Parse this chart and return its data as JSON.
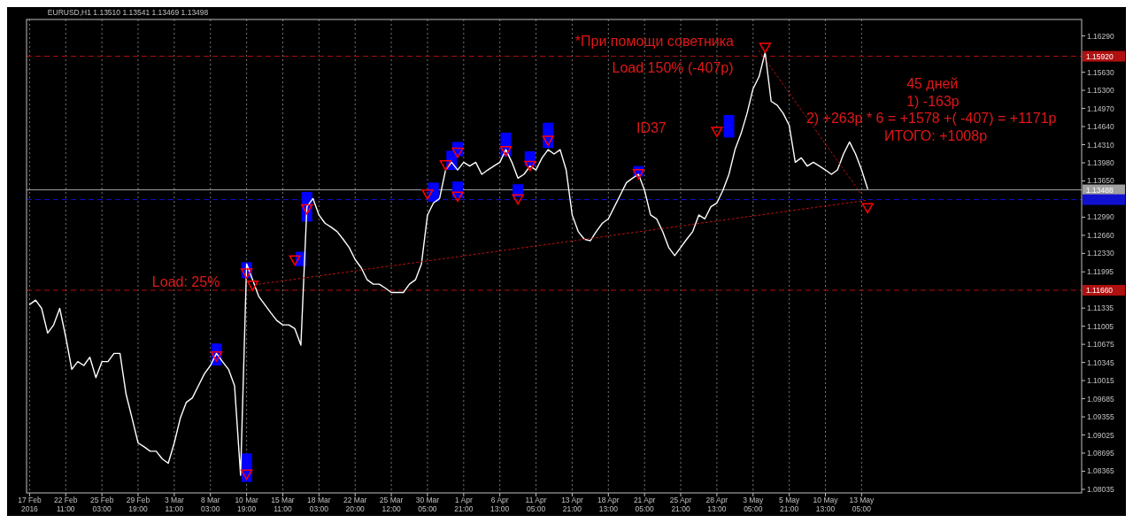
{
  "chart_data": {
    "type": "line",
    "annotations": [
      "EURUSD,H1  1.13510 1.13541 1.13469 1.13498",
      "*При помощи советника",
      "Load 150% (-407р)",
      "45 дней",
      "1) -163р",
      "2) +263р * 6 = +1578 +( -407) = +1171р",
      "ИТОГО: +1008р",
      "ID37",
      "Load: 25%"
    ],
    "categories": [
      "17 Feb 2016",
      null,
      null,
      null,
      null,
      null,
      "22 Feb 11:00",
      null,
      null,
      null,
      null,
      null,
      "25 Feb 03:00",
      null,
      null,
      null,
      null,
      null,
      "29 Feb 19:00",
      null,
      null,
      null,
      null,
      null,
      "3 Mar 11:00",
      null,
      null,
      null,
      null,
      null,
      "8 Mar 03:00",
      null,
      null,
      null,
      null,
      null,
      "10 Mar 19:00",
      null,
      null,
      null,
      null,
      null,
      "15 Mar 11:00",
      null,
      null,
      null,
      null,
      null,
      "18 Mar 03:00",
      null,
      null,
      null,
      null,
      null,
      "22 Mar 20:00",
      null,
      null,
      null,
      null,
      null,
      "25 Mar 12:00",
      null,
      null,
      null,
      null,
      null,
      "30 Mar 05:00",
      null,
      null,
      null,
      null,
      null,
      "1 Apr 21:00",
      null,
      null,
      null,
      null,
      null,
      "6 Apr 13:00",
      null,
      null,
      null,
      null,
      null,
      "11 Apr 05:00",
      null,
      null,
      null,
      null,
      null,
      "13 Apr 21:00",
      null,
      null,
      null,
      null,
      null,
      "18 Apr 13:00",
      null,
      null,
      null,
      null,
      null,
      "21 Apr 05:00",
      null,
      null,
      null,
      null,
      null,
      "25 Apr 21:00",
      null,
      null,
      null,
      null,
      null,
      "28 Apr 13:00",
      null,
      null,
      null,
      null,
      null,
      "3 May 05:00",
      null,
      null,
      null,
      null,
      null,
      "5 May 21:00",
      null,
      null,
      null,
      null,
      null,
      "10 May 13:00",
      null,
      null,
      null,
      null,
      null,
      "13 May 05:00",
      null,
      null,
      null,
      null,
      null,
      null,
      null,
      null,
      null,
      null,
      null,
      null,
      null,
      null,
      null,
      null,
      null,
      null,
      null,
      null,
      null,
      null,
      null,
      null,
      null,
      null,
      null,
      null,
      null,
      null,
      null,
      null,
      null,
      null,
      null,
      null
    ],
    "ylim": [
      1.0797,
      1.1659
    ],
    "yticks": [
      {
        "value": 1.1629,
        "label": "1.16290"
      },
      {
        "value": 1.1563,
        "label": "1.15630"
      },
      {
        "value": 1.153,
        "label": "1.15300"
      },
      {
        "value": 1.1497,
        "label": "1.14970"
      },
      {
        "value": 1.1464,
        "label": "1.14640"
      },
      {
        "value": 1.1431,
        "label": "1.14310"
      },
      {
        "value": 1.1398,
        "label": "1.13980"
      },
      {
        "value": 1.1365,
        "label": "1.13650"
      },
      {
        "value": 1.1299,
        "label": "1.12990"
      },
      {
        "value": 1.1266,
        "label": "1.12660"
      },
      {
        "value": 1.1233,
        "label": "1.12330"
      },
      1.11995,
      1.11335,
      1.11005,
      1.10675,
      1.10345,
      1.10015,
      1.09685,
      1.09355,
      1.09025,
      1.08695,
      1.08365,
      1.08035
    ],
    "grid": "x",
    "ref_lines": [
      {
        "axis": "y",
        "value": 1.1592,
        "label": "1.15920",
        "color": "#b01010",
        "line_style": "dashed"
      },
      {
        "axis": "y",
        "value": 1.13488,
        "label": "1.13488",
        "color": "#a0a0a0",
        "line_style": "solid"
      },
      {
        "axis": "y",
        "value": 1.1331,
        "label": null,
        "color": "#1010d0",
        "line_style": "dashed"
      },
      {
        "axis": "y",
        "value": 1.1166,
        "label": "1.11660",
        "color": "#b01010",
        "line_style": "dashed"
      }
    ],
    "series": [
      {
        "color": "#ffffff",
        "values": [
          1.114,
          1.1148,
          1.1133,
          1.1088,
          1.1103,
          1.1133,
          1.1081,
          1.1022,
          1.1036,
          1.1029,
          1.1044,
          1.1007,
          1.1036,
          1.1036,
          1.1051,
          1.1051,
          1.0977,
          1.0933,
          1.0888,
          1.0881,
          1.0873,
          1.0873,
          1.0859,
          1.0851,
          1.0888,
          1.0933,
          1.0962,
          1.097,
          1.0992,
          1.1014,
          1.1029,
          1.1051,
          1.1036,
          1.1022,
          1.0992,
          1.0829,
          1.1214,
          1.1185,
          1.1155,
          1.114,
          1.1125,
          1.1111,
          1.1103,
          1.1103,
          1.1096,
          1.1066,
          1.1318,
          1.1333,
          1.1303,
          1.1288,
          1.1281,
          1.1273,
          1.1259,
          1.1244,
          1.1222,
          1.1207,
          1.1185,
          1.1177,
          1.1177,
          1.117,
          1.1162,
          1.1162,
          1.1162,
          1.1177,
          1.1185,
          1.1214,
          1.1303,
          1.1325,
          1.1333,
          1.1385,
          1.1399,
          1.1385,
          1.1399,
          1.1392,
          1.1399,
          1.1377,
          1.1385,
          1.1392,
          1.1399,
          1.1422,
          1.1399,
          1.137,
          1.1377,
          1.1392,
          1.1385,
          1.1407,
          1.1422,
          1.1414,
          1.1422,
          1.1385,
          1.1303,
          1.1273,
          1.1259,
          1.1256,
          1.1273,
          1.1288,
          1.1296,
          1.1318,
          1.134,
          1.1362,
          1.137,
          1.1377,
          1.1348,
          1.1303,
          1.1296,
          1.1273,
          1.1244,
          1.1229,
          1.1244,
          1.1259,
          1.1273,
          1.1303,
          1.1296,
          1.1318,
          1.1325,
          1.1348,
          1.1377,
          1.1422,
          1.1451,
          1.1488,
          1.1533,
          1.1555,
          1.1599,
          1.151,
          1.1503,
          1.1488,
          1.1466,
          1.1399,
          1.1407,
          1.1392,
          1.1399,
          1.1392,
          1.1385,
          1.1377,
          1.1385,
          1.1414,
          1.1436,
          1.1414,
          1.1385,
          1.1351,
          null,
          null,
          null,
          null,
          null,
          null,
          null,
          null,
          null,
          null,
          null,
          null,
          null,
          null,
          null,
          null,
          null,
          null,
          null,
          null,
          null,
          null,
          null,
          null,
          null,
          null,
          null,
          null,
          null,
          null,
          null,
          null,
          null,
          null,
          null
        ]
      },
      {
        "type": "line",
        "color": "#c01010",
        "line_style": "dotted",
        "values": [
          null,
          null,
          null,
          null,
          null,
          null,
          null,
          null,
          null,
          null,
          null,
          null,
          null,
          null,
          null,
          null,
          null,
          null,
          null,
          null,
          null,
          null,
          null,
          null,
          null,
          null,
          null,
          null,
          null,
          null,
          null,
          null,
          null,
          null,
          null,
          null,
          null,
          null,
          1.1177,
          null,
          null,
          null,
          null,
          null,
          null,
          null,
          null,
          null,
          null,
          null,
          null,
          null,
          null,
          null,
          null,
          null,
          null,
          null,
          null,
          null,
          null,
          null,
          null,
          null,
          null,
          null,
          null,
          null,
          null,
          null,
          null,
          null,
          null,
          null,
          null,
          null,
          null,
          null,
          null,
          null,
          null,
          null,
          null,
          null,
          null,
          null,
          null,
          null,
          null,
          null,
          null,
          null,
          null,
          null,
          null,
          null,
          null,
          null,
          null,
          null,
          null,
          null,
          null,
          null,
          null,
          null,
          null,
          null,
          null,
          null,
          null,
          null,
          null,
          null,
          null,
          null,
          null,
          null,
          null,
          null,
          null,
          null,
          null,
          null,
          null,
          null,
          null,
          null,
          null,
          null,
          null,
          null,
          null,
          null,
          null,
          null,
          null,
          null,
          null,
          1.133,
          null,
          null,
          null,
          null,
          null,
          null,
          null,
          null,
          null,
          null,
          null,
          null,
          null,
          null,
          null,
          null,
          null,
          null,
          null,
          null,
          null,
          null,
          null,
          null,
          null,
          null,
          null,
          null,
          null,
          null,
          null,
          null,
          null,
          null,
          null
        ]
      },
      {
        "type": "line",
        "color": "#c01010",
        "line_style": "dotted",
        "values": [
          null,
          null,
          null,
          null,
          null,
          null,
          null,
          null,
          null,
          null,
          null,
          null,
          null,
          null,
          null,
          null,
          null,
          null,
          null,
          null,
          null,
          null,
          null,
          null,
          null,
          null,
          null,
          null,
          null,
          null,
          null,
          null,
          null,
          null,
          null,
          null,
          null,
          null,
          null,
          null,
          null,
          null,
          null,
          null,
          null,
          null,
          null,
          null,
          null,
          null,
          null,
          null,
          null,
          null,
          null,
          null,
          null,
          null,
          null,
          null,
          null,
          null,
          null,
          null,
          null,
          null,
          null,
          null,
          null,
          null,
          null,
          null,
          null,
          null,
          null,
          null,
          null,
          null,
          null,
          null,
          null,
          null,
          null,
          null,
          null,
          null,
          null,
          null,
          null,
          null,
          null,
          null,
          null,
          null,
          null,
          null,
          null,
          null,
          null,
          null,
          null,
          null,
          null,
          null,
          null,
          null,
          null,
          null,
          null,
          null,
          null,
          null,
          null,
          null,
          null,
          null,
          null,
          null,
          null,
          null,
          null,
          1.1602,
          null,
          null,
          null,
          null,
          null,
          null,
          null,
          null,
          null,
          null,
          null,
          null,
          null,
          null,
          null,
          null,
          1.134,
          null,
          null,
          null,
          null,
          null,
          null,
          null,
          null,
          null,
          null,
          null,
          null,
          null,
          null,
          null,
          null,
          null,
          null,
          null,
          null,
          null,
          null,
          null,
          null,
          null,
          null,
          null,
          null,
          null,
          null,
          null,
          null,
          null,
          null,
          null,
          null
        ]
      },
      {
        "type": "bar",
        "color": "#0000ff",
        "base": [
          null,
          null,
          null,
          null,
          null,
          null,
          null,
          null,
          null,
          null,
          null,
          null,
          null,
          null,
          null,
          null,
          null,
          null,
          null,
          null,
          null,
          null,
          null,
          null,
          null,
          null,
          null,
          null,
          null,
          null,
          null,
          1.1029,
          null,
          null,
          null,
          null,
          1.0817,
          null,
          null,
          null,
          null,
          null,
          null,
          null,
          null,
          1.121,
          1.1291,
          null,
          null,
          null,
          null,
          null,
          null,
          null,
          null,
          null,
          null,
          null,
          null,
          null,
          null,
          null,
          null,
          null,
          null,
          null,
          null,
          1.1327,
          null,
          null,
          1.1385,
          1.141,
          null,
          null,
          null,
          null,
          null,
          null,
          null,
          1.141,
          null,
          1.1336,
          null,
          1.1392,
          null,
          null,
          1.1425,
          null,
          null,
          null,
          null,
          null,
          null,
          null,
          null,
          null,
          null,
          null,
          null,
          null,
          null,
          1.1373,
          null,
          null,
          null,
          null,
          null,
          null,
          null,
          null,
          null,
          null,
          null,
          null,
          null,
          null,
          1.1444,
          null,
          null,
          null,
          null,
          null,
          null,
          null,
          null,
          null,
          null,
          null,
          null,
          null,
          null,
          null,
          null,
          null,
          null,
          null,
          null,
          null,
          null,
          null,
          null,
          null,
          null,
          null,
          null,
          null,
          null,
          null,
          null,
          null,
          null,
          null,
          null,
          null,
          null,
          null,
          null,
          null,
          null,
          null,
          null,
          null,
          null,
          null,
          null,
          null,
          null,
          null,
          null,
          null,
          null,
          null,
          null,
          null,
          null
        ],
        "values": [
          null,
          null,
          null,
          null,
          null,
          null,
          null,
          null,
          null,
          null,
          null,
          null,
          null,
          null,
          null,
          null,
          null,
          null,
          null,
          null,
          null,
          null,
          null,
          null,
          null,
          null,
          null,
          null,
          null,
          null,
          null,
          0.004,
          null,
          null,
          null,
          null,
          0.0052,
          null,
          null,
          null,
          null,
          null,
          null,
          null,
          null,
          0.0026,
          0.0054,
          null,
          null,
          null,
          null,
          null,
          null,
          null,
          null,
          null,
          null,
          null,
          null,
          null,
          null,
          null,
          null,
          null,
          null,
          null,
          null,
          0.0035,
          null,
          null,
          0.0035,
          0.0026,
          null,
          null,
          null,
          null,
          null,
          null,
          null,
          0.0043,
          null,
          0.0023,
          null,
          0.0027,
          null,
          null,
          0.0046,
          null,
          null,
          null,
          null,
          null,
          null,
          null,
          null,
          null,
          null,
          null,
          null,
          null,
          null,
          0.0019,
          null,
          null,
          null,
          null,
          null,
          null,
          null,
          null,
          null,
          null,
          null,
          null,
          null,
          null,
          0.0041,
          null,
          null,
          null,
          null,
          null,
          null,
          null,
          null,
          null,
          null,
          null,
          null,
          null,
          null,
          null,
          null,
          null,
          null,
          null,
          null,
          null,
          null,
          null,
          null,
          null,
          null,
          null,
          null,
          null,
          null,
          null,
          null,
          null,
          null,
          null,
          null,
          null,
          null,
          null,
          null,
          null,
          null,
          null,
          null,
          null,
          null,
          null,
          null,
          null,
          null,
          null,
          null,
          null,
          null,
          null,
          null,
          null,
          null
        ]
      },
      {
        "type": "bar",
        "color": "#0000ff",
        "base": [
          null,
          null,
          null,
          null,
          null,
          null,
          null,
          null,
          null,
          null,
          null,
          null,
          null,
          null,
          null,
          null,
          null,
          null,
          null,
          null,
          null,
          null,
          null,
          null,
          null,
          null,
          null,
          null,
          null,
          null,
          null,
          null,
          null,
          null,
          null,
          null,
          1.1188,
          null,
          null,
          null,
          null,
          null,
          null,
          null,
          null,
          null,
          null,
          null,
          null,
          null,
          null,
          null,
          null,
          null,
          null,
          null,
          null,
          null,
          null,
          null,
          null,
          null,
          null,
          null,
          null,
          null,
          null,
          null,
          null,
          null,
          null,
          1.1334,
          null,
          null,
          null,
          null,
          null,
          null,
          null,
          null,
          null,
          null,
          null,
          null,
          null,
          null,
          null,
          null,
          null,
          null,
          null,
          null,
          null,
          null,
          null,
          null,
          null,
          null,
          null,
          null,
          null,
          null,
          null,
          null,
          null,
          null,
          null,
          null,
          null,
          null,
          null,
          null,
          null,
          null,
          null,
          null,
          null,
          null,
          null,
          null,
          null,
          null,
          null,
          null,
          null,
          null,
          null,
          null,
          null,
          null,
          null,
          null,
          null,
          null,
          null,
          null,
          null,
          null,
          null,
          null,
          null,
          null,
          null,
          null,
          null,
          null,
          null,
          null,
          null,
          null,
          null,
          null,
          null,
          null,
          null,
          null,
          null,
          null,
          null,
          null,
          null,
          null,
          null,
          null,
          null,
          null,
          null,
          null,
          null,
          null,
          null,
          null,
          null,
          null,
          null
        ],
        "values": [
          null,
          null,
          null,
          null,
          null,
          null,
          null,
          null,
          null,
          null,
          null,
          null,
          null,
          null,
          null,
          null,
          null,
          null,
          null,
          null,
          null,
          null,
          null,
          null,
          null,
          null,
          null,
          null,
          null,
          null,
          null,
          null,
          null,
          null,
          null,
          null,
          0.0029,
          null,
          null,
          null,
          null,
          null,
          null,
          null,
          null,
          null,
          null,
          null,
          null,
          null,
          null,
          null,
          null,
          null,
          null,
          null,
          null,
          null,
          null,
          null,
          null,
          null,
          null,
          null,
          null,
          null,
          null,
          null,
          null,
          null,
          null,
          0.003,
          null,
          null,
          null,
          null,
          null,
          null,
          null,
          null,
          null,
          null,
          null,
          null,
          null,
          null,
          null,
          null,
          null,
          null,
          null,
          null,
          null,
          null,
          null,
          null,
          null,
          null,
          null,
          null,
          null,
          null,
          null,
          null,
          null,
          null,
          null,
          null,
          null,
          null,
          null,
          null,
          null,
          null,
          null,
          null,
          null,
          null,
          null,
          null,
          null,
          null,
          null,
          null,
          null,
          null,
          null,
          null,
          null,
          null,
          null,
          null,
          null,
          null,
          null,
          null,
          null,
          null,
          null,
          null,
          null,
          null,
          null,
          null,
          null,
          null,
          null,
          null,
          null,
          null,
          null,
          null,
          null,
          null,
          null,
          null,
          null,
          null,
          null,
          null,
          null,
          null,
          null,
          null,
          null,
          null,
          null,
          null,
          null,
          null,
          null,
          null,
          null,
          null,
          null
        ]
      },
      {
        "type": "scatter",
        "color": "#ff0000",
        "marker": "triangle",
        "values": [
          null,
          null,
          null,
          null,
          null,
          null,
          null,
          null,
          null,
          null,
          null,
          null,
          null,
          null,
          null,
          null,
          null,
          null,
          null,
          null,
          null,
          null,
          null,
          null,
          null,
          null,
          null,
          null,
          null,
          null,
          null,
          1.1048,
          null,
          null,
          null,
          null,
          1.0833,
          1.1177,
          null,
          null,
          null,
          null,
          null,
          null,
          1.1223,
          null,
          1.1316,
          null,
          null,
          null,
          null,
          null,
          null,
          null,
          null,
          null,
          null,
          null,
          null,
          null,
          null,
          null,
          null,
          null,
          null,
          null,
          1.1343,
          null,
          null,
          1.1396,
          null,
          1.1419,
          null,
          null,
          null,
          null,
          null,
          null,
          null,
          1.1422,
          null,
          1.1334,
          null,
          1.1395,
          null,
          null,
          1.1441,
          null,
          null,
          null,
          null,
          null,
          null,
          null,
          null,
          null,
          null,
          null,
          null,
          null,
          null,
          1.138,
          null,
          null,
          null,
          null,
          null,
          null,
          null,
          null,
          null,
          null,
          null,
          null,
          1.1457,
          null,
          null,
          null,
          null,
          null,
          null,
          null,
          1.161,
          null,
          null,
          null,
          null,
          null,
          null,
          null,
          null,
          null,
          null,
          null,
          null,
          null,
          null,
          null,
          null,
          1.1318,
          null,
          null,
          null,
          null,
          null,
          null,
          null,
          null,
          null,
          null,
          null,
          null,
          null,
          null,
          null,
          null,
          null,
          null,
          null,
          null,
          null,
          null,
          null,
          null,
          null,
          null,
          null,
          null,
          null,
          null,
          null,
          null,
          null,
          null,
          null
        ]
      },
      {
        "type": "scatter",
        "color": "#ff0000",
        "marker": "triangle",
        "values": [
          null,
          null,
          null,
          null,
          null,
          null,
          null,
          null,
          null,
          null,
          null,
          null,
          null,
          null,
          null,
          null,
          null,
          null,
          null,
          null,
          null,
          null,
          null,
          null,
          null,
          null,
          null,
          null,
          null,
          null,
          null,
          null,
          null,
          null,
          null,
          null,
          1.1199,
          null,
          null,
          null,
          null,
          null,
          null,
          null,
          null,
          null,
          null,
          null,
          null,
          null,
          null,
          null,
          null,
          null,
          null,
          null,
          null,
          null,
          null,
          null,
          null,
          null,
          null,
          null,
          null,
          null,
          null,
          null,
          null,
          null,
          null,
          1.1339,
          null,
          null,
          null,
          null,
          null,
          null,
          null,
          null,
          null,
          null,
          null,
          null,
          null,
          null,
          null,
          null,
          null,
          null,
          null,
          null,
          null,
          null,
          null,
          null,
          null,
          null,
          null,
          null,
          null,
          null,
          null,
          null,
          null,
          null,
          null,
          null,
          null,
          null,
          null,
          null,
          null,
          null,
          null,
          null,
          null,
          null,
          null,
          null,
          null,
          null,
          null,
          null,
          null,
          null,
          null,
          null,
          null,
          null,
          null,
          null,
          null,
          null,
          null,
          null,
          null,
          null,
          null,
          null,
          null,
          null,
          null,
          null,
          null,
          null,
          null,
          null,
          null,
          null,
          null,
          null,
          null,
          null,
          null,
          null,
          null,
          null,
          null,
          null,
          null,
          null,
          null,
          null,
          null,
          null,
          null,
          null,
          null,
          null,
          null,
          null,
          null,
          null,
          null
        ]
      }
    ]
  }
}
